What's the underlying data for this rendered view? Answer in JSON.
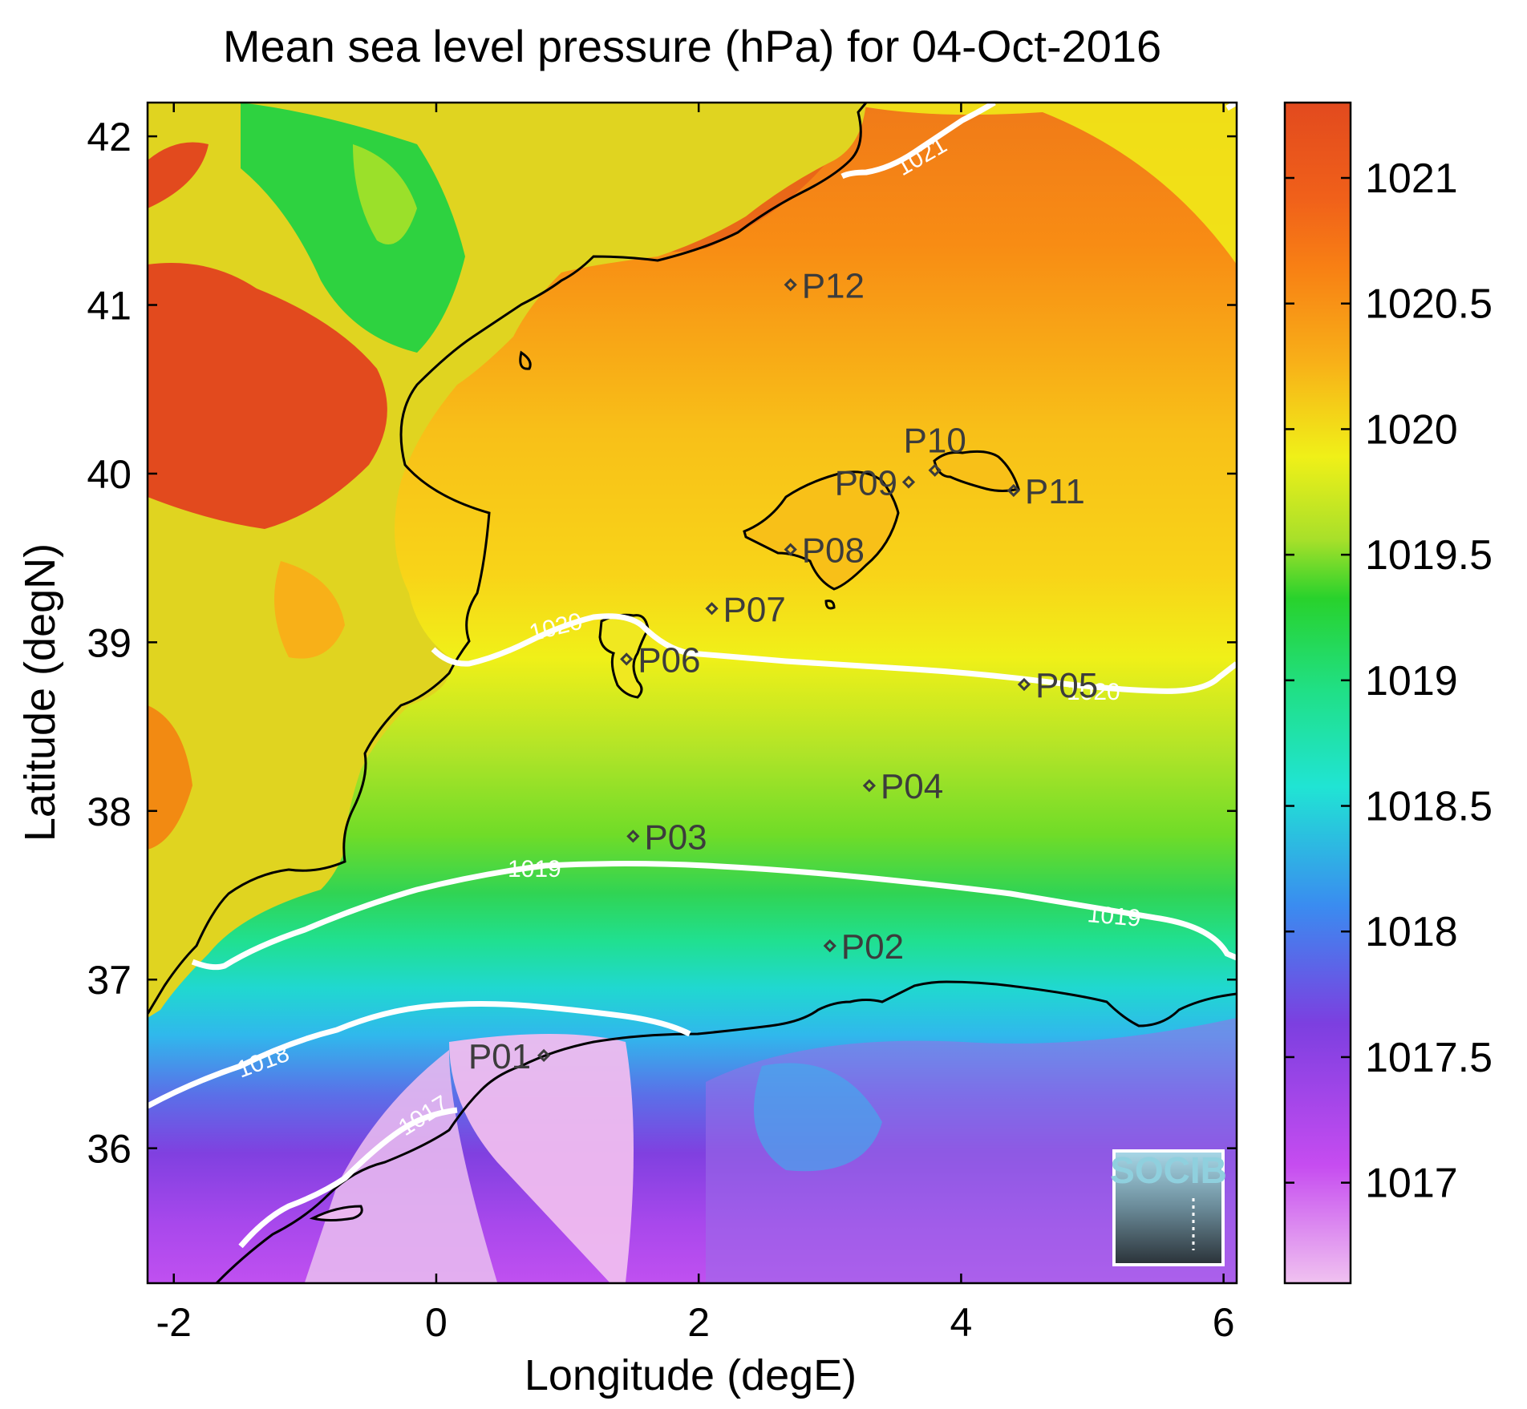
{
  "title": "Mean sea level pressure (hPa) for 04-Oct-2016",
  "map": {
    "xlabel": "Longitude (degE)",
    "ylabel": "Latitude (degN)",
    "xlim": [
      -2.2,
      6.1
    ],
    "ylim": [
      35.2,
      42.2
    ],
    "x_ticks": [
      "-2",
      "0",
      "2",
      "4",
      "6"
    ],
    "y_ticks": [
      "36",
      "37",
      "38",
      "39",
      "40",
      "41",
      "42"
    ],
    "coastline_color": "#000000",
    "colormap": [
      "#f0c2f0",
      "#c64cf0",
      "#7c3fe0",
      "#3a8cf0",
      "#20d8e8",
      "#20e090",
      "#28d22c",
      "#9be02a",
      "#f0f018",
      "#f8c018",
      "#f87a10",
      "#e24a1e"
    ]
  },
  "contours": [
    {
      "level": 1017,
      "labels": [
        "1017"
      ]
    },
    {
      "level": 1018,
      "labels": [
        "1018"
      ]
    },
    {
      "level": 1019,
      "labels": [
        "1019",
        "1019"
      ]
    },
    {
      "level": 1020,
      "labels": [
        "1020",
        "1020"
      ]
    },
    {
      "level": 1021,
      "labels": [
        "1021"
      ]
    }
  ],
  "points": [
    {
      "name": "P01",
      "lon": 0.82,
      "lat": 36.55
    },
    {
      "name": "P02",
      "lon": 3.0,
      "lat": 37.2
    },
    {
      "name": "P03",
      "lon": 1.5,
      "lat": 37.85
    },
    {
      "name": "P04",
      "lon": 3.3,
      "lat": 38.15
    },
    {
      "name": "P05",
      "lon": 4.48,
      "lat": 38.75
    },
    {
      "name": "P06",
      "lon": 1.45,
      "lat": 38.9
    },
    {
      "name": "P07",
      "lon": 2.1,
      "lat": 39.2
    },
    {
      "name": "P08",
      "lon": 2.7,
      "lat": 39.55
    },
    {
      "name": "P09",
      "lon": 3.6,
      "lat": 39.95
    },
    {
      "name": "P10",
      "lon": 3.8,
      "lat": 40.02
    },
    {
      "name": "P11",
      "lon": 4.4,
      "lat": 39.9
    },
    {
      "name": "P12",
      "lon": 2.7,
      "lat": 41.12
    }
  ],
  "colorbar": {
    "ticks": [
      "1021",
      "1020.5",
      "1020",
      "1019.5",
      "1019",
      "1018.5",
      "1018",
      "1017.5",
      "1017"
    ],
    "range": [
      1016.6,
      1021.3
    ]
  },
  "logo": {
    "text": "SOCIB"
  }
}
